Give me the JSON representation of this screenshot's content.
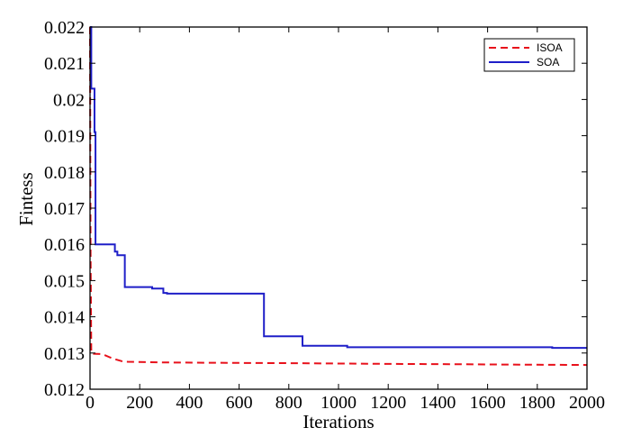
{
  "chart_data": {
    "type": "line",
    "title": "",
    "xlabel": "Iterations",
    "ylabel": "Fintess",
    "xlim": [
      0,
      2000
    ],
    "ylim": [
      0.012,
      0.022
    ],
    "x_ticks": [
      0,
      200,
      400,
      600,
      800,
      1000,
      1200,
      1400,
      1600,
      1800,
      2000
    ],
    "x_tick_labels": [
      "0",
      "200",
      "400",
      "600",
      "800",
      "1000",
      "1200",
      "1400",
      "1600",
      "1800",
      "2000"
    ],
    "y_ticks": [
      0.012,
      0.013,
      0.014,
      0.015,
      0.016,
      0.017,
      0.018,
      0.019,
      0.02,
      0.021,
      0.022
    ],
    "y_tick_labels": [
      "0.012",
      "0.013",
      "0.014",
      "0.015",
      "0.016",
      "0.017",
      "0.018",
      "0.019",
      "0.02",
      "0.021",
      "0.022"
    ],
    "grid": false,
    "legend_position": "top-right",
    "series": [
      {
        "name": "ISOA",
        "color": "#e8111b",
        "style": "dashed",
        "x": [
          0,
          2,
          5,
          10,
          50,
          80,
          100,
          130,
          150,
          300,
          500,
          800,
          1000,
          1200,
          1500,
          1700,
          2000
        ],
        "y": [
          0.022,
          0.016,
          0.013,
          0.01298,
          0.01297,
          0.01288,
          0.01283,
          0.01277,
          0.01276,
          0.01274,
          0.01273,
          0.01272,
          0.01271,
          0.0127,
          0.01269,
          0.01268,
          0.01267
        ]
      },
      {
        "name": "SOA",
        "color": "#1f1fc8",
        "style": "solid",
        "x": [
          0,
          5,
          5,
          18,
          18,
          22,
          22,
          100,
          100,
          110,
          110,
          120,
          120,
          140,
          140,
          250,
          250,
          295,
          295,
          310,
          310,
          700,
          700,
          855,
          855,
          1035,
          1035,
          1860,
          1860,
          2000
        ],
        "y": [
          0.022,
          0.022,
          0.0203,
          0.0203,
          0.0191,
          0.0191,
          0.016,
          0.016,
          0.0158,
          0.0158,
          0.0157,
          0.0157,
          0.0157,
          0.0157,
          0.01482,
          0.01482,
          0.01478,
          0.01478,
          0.01466,
          0.01466,
          0.01464,
          0.01464,
          0.01346,
          0.01346,
          0.0132,
          0.0132,
          0.01316,
          0.01316,
          0.01314,
          0.01314
        ]
      }
    ]
  }
}
